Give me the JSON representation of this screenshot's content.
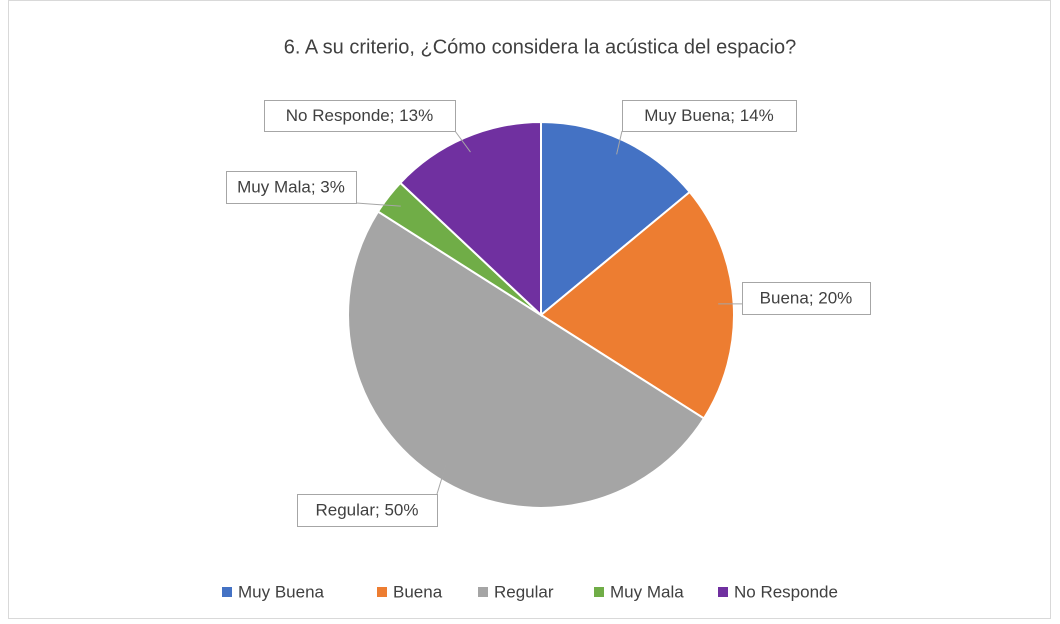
{
  "chart_data": {
    "type": "pie",
    "title": "6. A su criterio, ¿Cómo considera la acústica del espacio?",
    "categories": [
      "Muy Buena",
      "Buena",
      "Regular",
      "Muy Mala",
      "No Responde"
    ],
    "values": [
      14,
      20,
      50,
      3,
      13
    ],
    "value_labels": [
      "Muy Buena; 14%",
      "Buena; 20%",
      "Regular; 50%",
      "Muy Mala; 3%",
      "No Responde; 13%"
    ],
    "colors": [
      "#4472c4",
      "#ed7d31",
      "#a5a5a5",
      "#70ad47",
      "#7030a0"
    ],
    "legend": "bottom"
  }
}
